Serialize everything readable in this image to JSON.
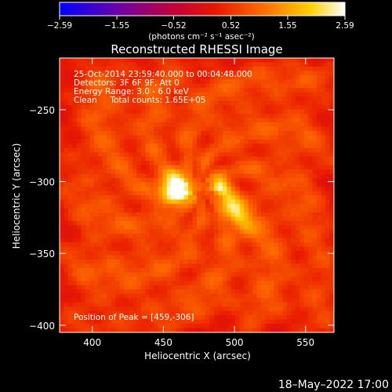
{
  "chart_data": {
    "type": "heatmap",
    "title": "Reconstructed RHESSI Image",
    "xlabel": "Heliocentric X (arcsec)",
    "ylabel": "Heliocentric Y (arcsec)",
    "xlim": [
      377,
      570
    ],
    "ylim": [
      -405,
      -214
    ],
    "x_ticks": [
      400,
      450,
      500,
      550
    ],
    "y_ticks": [
      -250,
      -300,
      -350,
      -400
    ],
    "x_tick_labels": [
      "400",
      "450",
      "500",
      "550"
    ],
    "y_tick_labels": [
      "−250",
      "−300",
      "−350",
      "−400"
    ],
    "colorbar": {
      "ticks": [
        -2.59,
        -1.55,
        -0.52,
        0.52,
        1.55,
        2.59
      ],
      "tick_labels": [
        "−2.59",
        "−1.55",
        "−0.52",
        "0.52",
        "1.55",
        "2.59"
      ],
      "unit_label": "(photons cm⁻² s⁻¹ asec⁻²)",
      "range": [
        -2.59,
        2.59
      ],
      "colormap": [
        "#0000ff",
        "#7300a6",
        "#b3004d",
        "#e00000",
        "#ff6600",
        "#ffcc00",
        "#ffffff"
      ]
    },
    "annotations": [
      "25-Oct-2014 23:59:40.000 to 00:04:48.000",
      "Detectors: 3F 6F 9F, Att 0",
      "Energy Range: 3.0 - 6.0 keV",
      "Clean     Total counts: 1.65E+05"
    ],
    "peak_label": "Position of Peak = [459,-306]",
    "peak": [
      459,
      -306
    ],
    "sources": [
      {
        "x": 459,
        "y": -305,
        "sigma": 7.5,
        "amplitude": 2.59
      },
      {
        "x": 500,
        "y": -320,
        "sigma_major": 14,
        "sigma_minor": 5,
        "angle_deg": -55,
        "amplitude": 1.75
      },
      {
        "x": 490,
        "y": -302,
        "sigma": 4,
        "amplitude": 1.0
      }
    ],
    "background_level": 0.68,
    "grid": false
  },
  "footer": {
    "timestamp": "18–May–2022 17:00"
  }
}
